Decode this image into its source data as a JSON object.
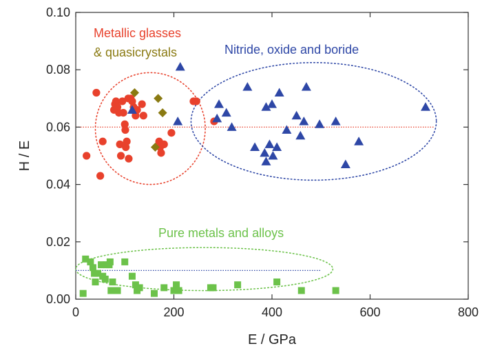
{
  "chart_data": {
    "type": "scatter",
    "xlabel": "E / GPa",
    "ylabel": "H / E",
    "xlim": [
      0,
      800
    ],
    "ylim": [
      0,
      0.1
    ],
    "x_ticks": [
      "0",
      "200",
      "400",
      "600",
      "800"
    ],
    "y_ticks": [
      "0.00",
      "0.02",
      "0.04",
      "0.06",
      "0.08",
      "0.10"
    ],
    "grid": false,
    "legend": "none",
    "annotations": [
      {
        "id": "metallic",
        "lines": [
          "Metallic glasses",
          "& quasicrystals"
        ],
        "colors": [
          "#e8412c",
          "#8a7a12"
        ],
        "position": "top-left"
      },
      {
        "id": "nitride",
        "lines": [
          "Nitride, oxide and boride"
        ],
        "colors": [
          "#2e47a6"
        ],
        "position": "top-right"
      },
      {
        "id": "pure",
        "lines": [
          "Pure metals and alloys"
        ],
        "colors": [
          "#6cc24a"
        ],
        "position": "lower-middle"
      }
    ],
    "series": [
      {
        "marker": "circle",
        "color": "#e8412c",
        "points": [
          [
            22,
            0.05
          ],
          [
            42,
            0.072
          ],
          [
            50,
            0.043
          ],
          [
            55,
            0.055
          ],
          [
            78,
            0.066
          ],
          [
            80,
            0.068
          ],
          [
            82,
            0.069
          ],
          [
            85,
            0.067
          ],
          [
            88,
            0.065
          ],
          [
            90,
            0.054
          ],
          [
            92,
            0.05
          ],
          [
            95,
            0.069
          ],
          [
            97,
            0.065
          ],
          [
            100,
            0.061
          ],
          [
            101,
            0.059
          ],
          [
            102,
            0.053
          ],
          [
            104,
            0.055
          ],
          [
            107,
            0.07
          ],
          [
            108,
            0.049
          ],
          [
            112,
            0.07
          ],
          [
            115,
            0.069
          ],
          [
            118,
            0.067
          ],
          [
            122,
            0.064
          ],
          [
            125,
            0.066
          ],
          [
            135,
            0.068
          ],
          [
            138,
            0.064
          ],
          [
            170,
            0.055
          ],
          [
            172,
            0.053
          ],
          [
            174,
            0.051
          ],
          [
            176,
            0.054
          ],
          [
            180,
            0.054
          ],
          [
            195,
            0.058
          ],
          [
            240,
            0.069
          ],
          [
            246,
            0.069
          ],
          [
            282,
            0.062
          ]
        ]
      },
      {
        "marker": "diamond",
        "color": "#8a7a12",
        "points": [
          [
            120,
            0.072
          ],
          [
            168,
            0.07
          ],
          [
            177,
            0.065
          ],
          [
            162,
            0.053
          ]
        ]
      },
      {
        "marker": "triangle",
        "color": "#2e47a6",
        "points": [
          [
            115,
            0.066
          ],
          [
            208,
            0.062
          ],
          [
            213,
            0.081
          ],
          [
            292,
            0.068
          ],
          [
            288,
            0.063
          ],
          [
            307,
            0.065
          ],
          [
            318,
            0.06
          ],
          [
            350,
            0.074
          ],
          [
            365,
            0.053
          ],
          [
            385,
            0.051
          ],
          [
            388,
            0.048
          ],
          [
            388,
            0.067
          ],
          [
            395,
            0.054
          ],
          [
            400,
            0.068
          ],
          [
            402,
            0.05
          ],
          [
            410,
            0.053
          ],
          [
            415,
            0.072
          ],
          [
            430,
            0.059
          ],
          [
            450,
            0.064
          ],
          [
            458,
            0.057
          ],
          [
            465,
            0.062
          ],
          [
            470,
            0.074
          ],
          [
            497,
            0.061
          ],
          [
            530,
            0.062
          ],
          [
            550,
            0.047
          ],
          [
            577,
            0.055
          ],
          [
            713,
            0.067
          ]
        ]
      },
      {
        "marker": "square",
        "color": "#6cc24a",
        "points": [
          [
            15,
            0.002
          ],
          [
            20,
            0.014
          ],
          [
            30,
            0.013
          ],
          [
            35,
            0.011
          ],
          [
            38,
            0.009
          ],
          [
            40,
            0.006
          ],
          [
            45,
            0.009
          ],
          [
            52,
            0.012
          ],
          [
            55,
            0.008
          ],
          [
            60,
            0.007
          ],
          [
            62,
            0.012
          ],
          [
            68,
            0.012
          ],
          [
            70,
            0.013
          ],
          [
            72,
            0.003
          ],
          [
            75,
            0.006
          ],
          [
            85,
            0.003
          ],
          [
            100,
            0.013
          ],
          [
            115,
            0.008
          ],
          [
            122,
            0.005
          ],
          [
            125,
            0.003
          ],
          [
            130,
            0.004
          ],
          [
            160,
            0.002
          ],
          [
            180,
            0.004
          ],
          [
            200,
            0.003
          ],
          [
            205,
            0.005
          ],
          [
            210,
            0.003
          ],
          [
            275,
            0.004
          ],
          [
            280,
            0.004
          ],
          [
            330,
            0.005
          ],
          [
            410,
            0.006
          ],
          [
            460,
            0.003
          ],
          [
            530,
            0.003
          ]
        ]
      }
    ],
    "reference_lines": [
      {
        "y": 0.06,
        "x_range": [
          0,
          730
        ],
        "color": "#e8412c",
        "style": "dotted"
      },
      {
        "y": 0.01,
        "x_range": [
          0,
          500
        ],
        "color": "#2e47a6",
        "style": "dotted"
      }
    ],
    "enclosures": [
      {
        "center": [
          152,
          0.0595
        ],
        "radii": [
          112,
          0.0195
        ],
        "color": "#e8412c",
        "style": "dotted"
      },
      {
        "center": [
          485,
          0.062
        ],
        "radii": [
          250,
          0.0205
        ],
        "color": "#2e47a6",
        "style": "dotted"
      },
      {
        "center": [
          262,
          0.0105
        ],
        "radii": [
          262,
          0.0075
        ],
        "color": "#6cc24a",
        "style": "dotted"
      }
    ]
  }
}
